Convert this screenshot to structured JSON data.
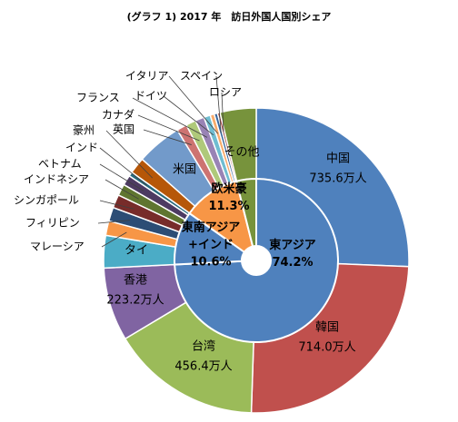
{
  "chart_data": {
    "type": "pie",
    "title": "(グラフ 1) 2017 年　訪日外国人国別シェア",
    "outer": [
      {
        "name": "中国",
        "value": 735.6,
        "value_label": "735.6万人",
        "color": "#4f81bd"
      },
      {
        "name": "韓国",
        "value": 714.0,
        "value_label": "714.0万人",
        "color": "#c0504d"
      },
      {
        "name": "台湾",
        "value": 456.4,
        "value_label": "456.4万人",
        "color": "#9bbb59"
      },
      {
        "name": "香港",
        "value": 223.2,
        "value_label": "223.2万人",
        "color": "#8064a2"
      },
      {
        "name": "タイ",
        "value": 98.7,
        "color": "#4bacc6"
      },
      {
        "name": "マレーシア",
        "value": 44.0,
        "color": "#f79646"
      },
      {
        "name": "フィリピン",
        "value": 42.4,
        "color": "#2c4d75"
      },
      {
        "name": "シンガポール",
        "value": 40.4,
        "color": "#772c2a"
      },
      {
        "name": "インドネシア",
        "value": 35.2,
        "color": "#5f7530"
      },
      {
        "name": "ベトナム",
        "value": 30.9,
        "color": "#4d3b62"
      },
      {
        "name": "インド",
        "value": 13.4,
        "color": "#276a7c"
      },
      {
        "name": "豪州",
        "value": 49.5,
        "color": "#b65708"
      },
      {
        "name": "米国",
        "value": 137.5,
        "color": "#729aca"
      },
      {
        "name": "英国",
        "value": 31.0,
        "color": "#cd7371"
      },
      {
        "name": "カナダ",
        "value": 30.6,
        "color": "#afc97a"
      },
      {
        "name": "フランス",
        "value": 26.9,
        "color": "#9983b5"
      },
      {
        "name": "ドイツ",
        "value": 19.6,
        "color": "#6fbdd1"
      },
      {
        "name": "イタリア",
        "value": 12.5,
        "color": "#f9ab6b"
      },
      {
        "name": "スペイン",
        "value": 10.0,
        "color": "#3a679c"
      },
      {
        "name": "ロシア",
        "value": 7.7,
        "color": "#9d3b38"
      },
      {
        "name": "その他",
        "value": 110.0,
        "color": "#77933c"
      }
    ],
    "inner": [
      {
        "label_lines": [
          "東アジア",
          "74.2%"
        ],
        "value": 74.2,
        "color": "#4f81bd"
      },
      {
        "label_lines": [
          "東南アジア",
          "+インド",
          "10.6%"
        ],
        "value": 10.6,
        "color": "#4f81bd"
      },
      {
        "label_lines": [
          "欧米豪",
          "11.3%"
        ],
        "value": 11.3,
        "color": "#f79646"
      },
      {
        "label_lines": [],
        "value": 3.9,
        "color": "#77933c"
      }
    ],
    "legend": "none"
  }
}
